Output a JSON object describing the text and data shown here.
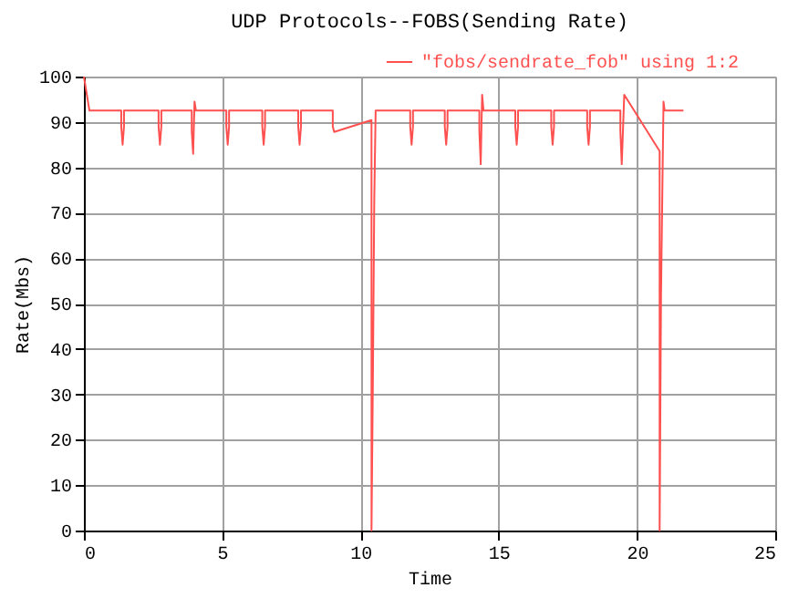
{
  "chart_data": {
    "type": "line",
    "title": "UDP Protocols--FOBS(Sending Rate)",
    "xlabel": "Time",
    "ylabel": "Rate(Mbs)",
    "xlim": [
      0,
      25
    ],
    "xticks": [
      0,
      5,
      10,
      15,
      20,
      25
    ],
    "ylim": [
      0,
      100
    ],
    "yticks": [
      0,
      10,
      20,
      30,
      40,
      50,
      60,
      70,
      80,
      90,
      100
    ],
    "grid": true,
    "legend": "top right",
    "line_style": "solid",
    "series": [
      {
        "name": "\"fobs/sendrate_fob\" using 1:2",
        "color": "#ff5050",
        "x": [
          0,
          0.2,
          1.35,
          1.35,
          1.4,
          1.45,
          1.45,
          2.7,
          2.7,
          2.75,
          2.8,
          2.8,
          3.9,
          3.9,
          3.95,
          4.0,
          4.05,
          5.15,
          5.15,
          5.2,
          5.25,
          5.25,
          6.45,
          6.45,
          6.5,
          6.55,
          6.55,
          7.75,
          7.75,
          7.8,
          7.85,
          7.85,
          9.0,
          9.0,
          9.05,
          10.4,
          10.4,
          10.45,
          10.5,
          10.55,
          11.8,
          11.8,
          11.85,
          11.9,
          11.9,
          13.05,
          13.05,
          13.1,
          13.15,
          13.15,
          14.3,
          14.3,
          14.35,
          14.4,
          14.45,
          15.6,
          15.6,
          15.65,
          15.7,
          15.7,
          16.9,
          16.9,
          16.95,
          17.0,
          17.0,
          18.2,
          18.2,
          18.25,
          18.3,
          18.3,
          19.4,
          19.4,
          19.45,
          19.54,
          20.82,
          20.82,
          20.87,
          20.96,
          21.0,
          21.68
        ],
        "values": [
          100,
          92.5,
          92.5,
          89,
          85,
          89,
          92.5,
          92.5,
          89,
          85,
          89,
          92.5,
          92.5,
          88,
          83,
          94.5,
          92.5,
          92.5,
          89,
          85,
          89,
          92.5,
          92.5,
          89,
          85,
          89,
          92.5,
          92.5,
          89,
          85,
          89,
          92.5,
          92.5,
          89,
          87.8,
          90.4,
          0,
          33,
          72.8,
          92.5,
          92.5,
          89,
          85,
          89,
          92.5,
          92.5,
          89,
          85,
          89,
          92.5,
          92.5,
          88,
          80.7,
          96,
          92.5,
          92.5,
          89,
          85,
          89,
          92.5,
          92.5,
          89,
          85,
          89,
          92.5,
          92.5,
          89,
          85,
          89,
          92.5,
          92.5,
          88,
          80.7,
          96,
          83.6,
          0,
          52,
          94.5,
          92.5,
          92.5
        ]
      }
    ]
  }
}
